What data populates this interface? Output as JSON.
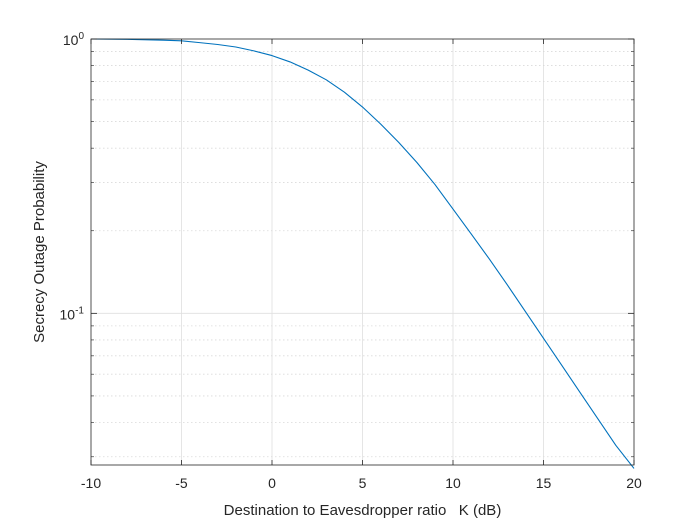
{
  "chart_data": {
    "type": "line",
    "title": "",
    "xlabel": "Destination to Eavesdropper ratio   K (dB)",
    "ylabel": "Secrecy Outage Probability",
    "xlim": [
      -10,
      20
    ],
    "ylim": [
      0.028,
      1.0
    ],
    "yscale": "log",
    "grid": true,
    "x_ticks": [
      -10,
      -5,
      0,
      5,
      10,
      15,
      20
    ],
    "x_tick_labels": [
      "-10",
      "-5",
      "0",
      "5",
      "10",
      "15",
      "20"
    ],
    "y_ticks": [
      {
        "value": 1.0,
        "base": "10",
        "exp": "0"
      },
      {
        "value": 0.1,
        "base": "10",
        "exp": "-1"
      }
    ],
    "series": [
      {
        "color": "#0072BD",
        "x": [
          -10,
          -8,
          -6,
          -5,
          -4,
          -3,
          -2,
          -1,
          0,
          1,
          2,
          3,
          4,
          5,
          6,
          7,
          8,
          9,
          10,
          11,
          12,
          13,
          14,
          15,
          16,
          17,
          18,
          19,
          20
        ],
        "y": [
          1.0,
          0.997,
          0.99,
          0.985,
          0.97,
          0.955,
          0.935,
          0.905,
          0.87,
          0.825,
          0.77,
          0.71,
          0.64,
          0.565,
          0.49,
          0.42,
          0.355,
          0.295,
          0.24,
          0.195,
          0.158,
          0.127,
          0.1015,
          0.0811,
          0.0648,
          0.0517,
          0.0413,
          0.033,
          0.0272
        ]
      }
    ]
  }
}
